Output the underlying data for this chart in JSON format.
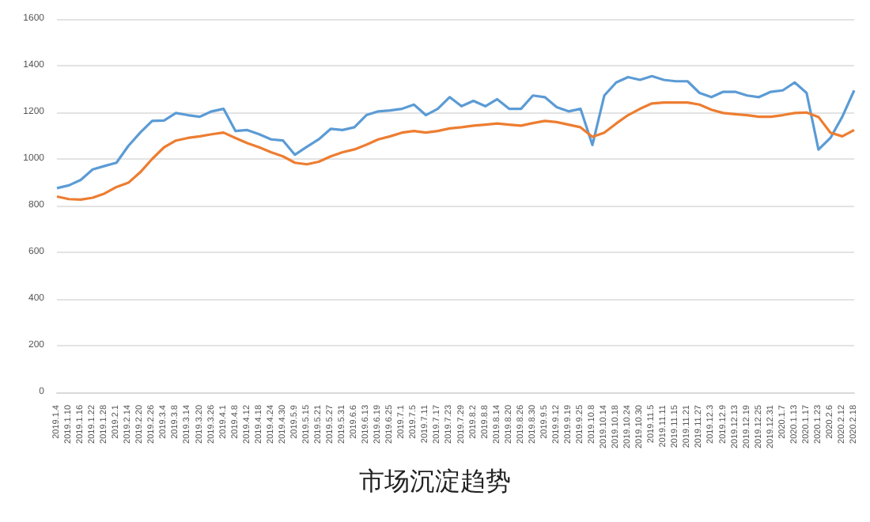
{
  "chart_data": {
    "type": "line",
    "title": "市场沉淀趋势",
    "categories": [
      "2019.1.4",
      "2019.1.10",
      "2019.1.16",
      "2019.1.22",
      "2019.1.28",
      "2019.2.1",
      "2019.2.14",
      "2019.2.20",
      "2019.2.26",
      "2019.3.4",
      "2019.3.8",
      "2019.3.14",
      "2019.3.20",
      "2019.3.26",
      "2019.4.1",
      "2019.4.8",
      "2019.4.12",
      "2019.4.18",
      "2019.4.24",
      "2019.4.30",
      "2019.5.9",
      "2019.5.15",
      "2019.5.21",
      "2019.5.27",
      "2019.5.31",
      "2019.6.6",
      "2019.6.13",
      "2019.6.19",
      "2019.6.25",
      "2019.7.1",
      "2019.7.5",
      "2019.7.11",
      "2019.7.17",
      "2019.7.23",
      "2019.7.29",
      "2019.8.2",
      "2019.8.8",
      "2019.8.14",
      "2019.8.20",
      "2019.8.26",
      "2019.8.30",
      "2019.9.5",
      "2019.9.12",
      "2019.9.19",
      "2019.9.25",
      "2019.10.8",
      "2019.10.14",
      "2019.10.18",
      "2019.10.24",
      "2019.10.30",
      "2019.11.5",
      "2019.11.11",
      "2019.11.15",
      "2019.11.21",
      "2019.11.27",
      "2019.12.3",
      "2019.12.9",
      "2019.12.13",
      "2019.12.19",
      "2019.12.25",
      "2019.12.31",
      "2020.1.7",
      "2020.1.13",
      "2020.1.17",
      "2020.1.23",
      "2020.2.6",
      "2020.2.12",
      "2020.2.18"
    ],
    "series": [
      {
        "color": "#5b9bd5",
        "values": [
          875,
          887,
          910,
          955,
          970,
          984,
          1056,
          1113,
          1163,
          1165,
          1197,
          1188,
          1181,
          1204,
          1215,
          1120,
          1124,
          1106,
          1084,
          1079,
          1018,
          1052,
          1084,
          1129,
          1124,
          1136,
          1188,
          1204,
          1208,
          1215,
          1233,
          1188,
          1215,
          1265,
          1226,
          1249,
          1226,
          1256,
          1215,
          1215,
          1272,
          1265,
          1222,
          1204,
          1215,
          1060,
          1272,
          1328,
          1351,
          1339,
          1355,
          1339,
          1333,
          1333,
          1283,
          1265,
          1288,
          1288,
          1272,
          1265,
          1288,
          1294,
          1328,
          1283,
          1040,
          1090,
          1181,
          1294
        ]
      },
      {
        "color": "#ed7d31",
        "values": [
          839,
          828,
          826,
          834,
          852,
          880,
          898,
          943,
          1000,
          1050,
          1079,
          1090,
          1097,
          1106,
          1113,
          1090,
          1068,
          1050,
          1029,
          1011,
          984,
          977,
          988,
          1011,
          1029,
          1041,
          1061,
          1084,
          1097,
          1113,
          1120,
          1113,
          1120,
          1131,
          1136,
          1143,
          1147,
          1152,
          1147,
          1143,
          1154,
          1163,
          1158,
          1147,
          1136,
          1095,
          1113,
          1152,
          1188,
          1215,
          1238,
          1242,
          1242,
          1242,
          1233,
          1211,
          1197,
          1192,
          1188,
          1181,
          1181,
          1188,
          1197,
          1199,
          1180,
          1113,
          1097,
          1124
        ]
      }
    ],
    "ylim": [
      0,
      1600
    ],
    "yticks": [
      0,
      200,
      400,
      600,
      800,
      1000,
      1200,
      1400,
      1600
    ],
    "grid": "y",
    "marker": "none",
    "line_style": "solid"
  }
}
